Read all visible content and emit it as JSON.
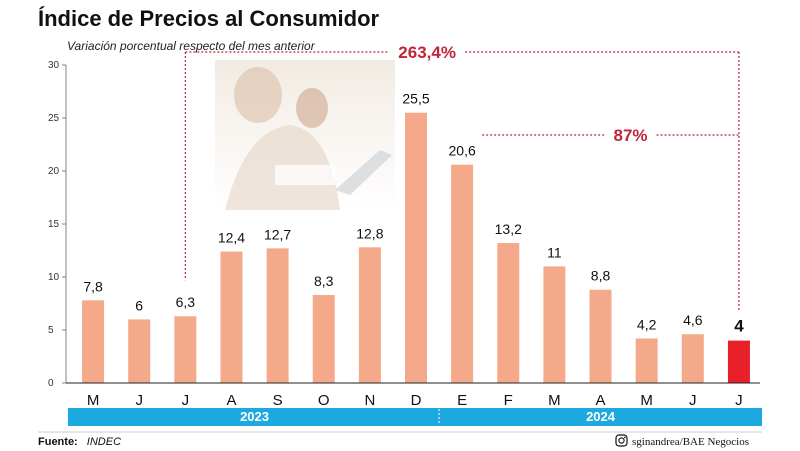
{
  "chart_data": {
    "type": "bar",
    "title": "Índice de Precios al Consumidor",
    "subtitle": "Variación porcentual respecto del mes anterior",
    "categories": [
      "M",
      "J",
      "J",
      "A",
      "S",
      "O",
      "N",
      "D",
      "E",
      "F",
      "M",
      "A",
      "M",
      "J",
      "J"
    ],
    "values": [
      7.8,
      6,
      6.3,
      12.4,
      12.7,
      8.3,
      12.8,
      25.5,
      20.6,
      13.2,
      11,
      8.8,
      4.2,
      4.6,
      4
    ],
    "value_labels": [
      "7,8",
      "6",
      "6,3",
      "12,4",
      "12,7",
      "8,3",
      "12,8",
      "25,5",
      "20,6",
      "13,2",
      "11",
      "8,8",
      "4,2",
      "4,6",
      "4"
    ],
    "highlight_index": 14,
    "ylim": [
      0,
      30
    ],
    "yticks": [
      0,
      5,
      10,
      15,
      20,
      25,
      30
    ],
    "years": [
      {
        "label": "2023",
        "start": 0,
        "end": 7
      },
      {
        "label": "2024",
        "start": 8,
        "end": 14
      }
    ],
    "annotations": [
      {
        "label": "263,4%",
        "from": 2,
        "to": 14
      },
      {
        "label": "87%",
        "from": 8,
        "to": 14
      }
    ],
    "colors": {
      "bar": "#f4a98a",
      "highlight": "#e8202a",
      "annotation": "#c0253a",
      "year_band": "#1ba9df"
    }
  },
  "footer": {
    "source_label": "Fuente:",
    "source_value": "INDEC",
    "credit": "sginandrea/BAE Negocios",
    "credit_icon": "instagram-icon"
  }
}
